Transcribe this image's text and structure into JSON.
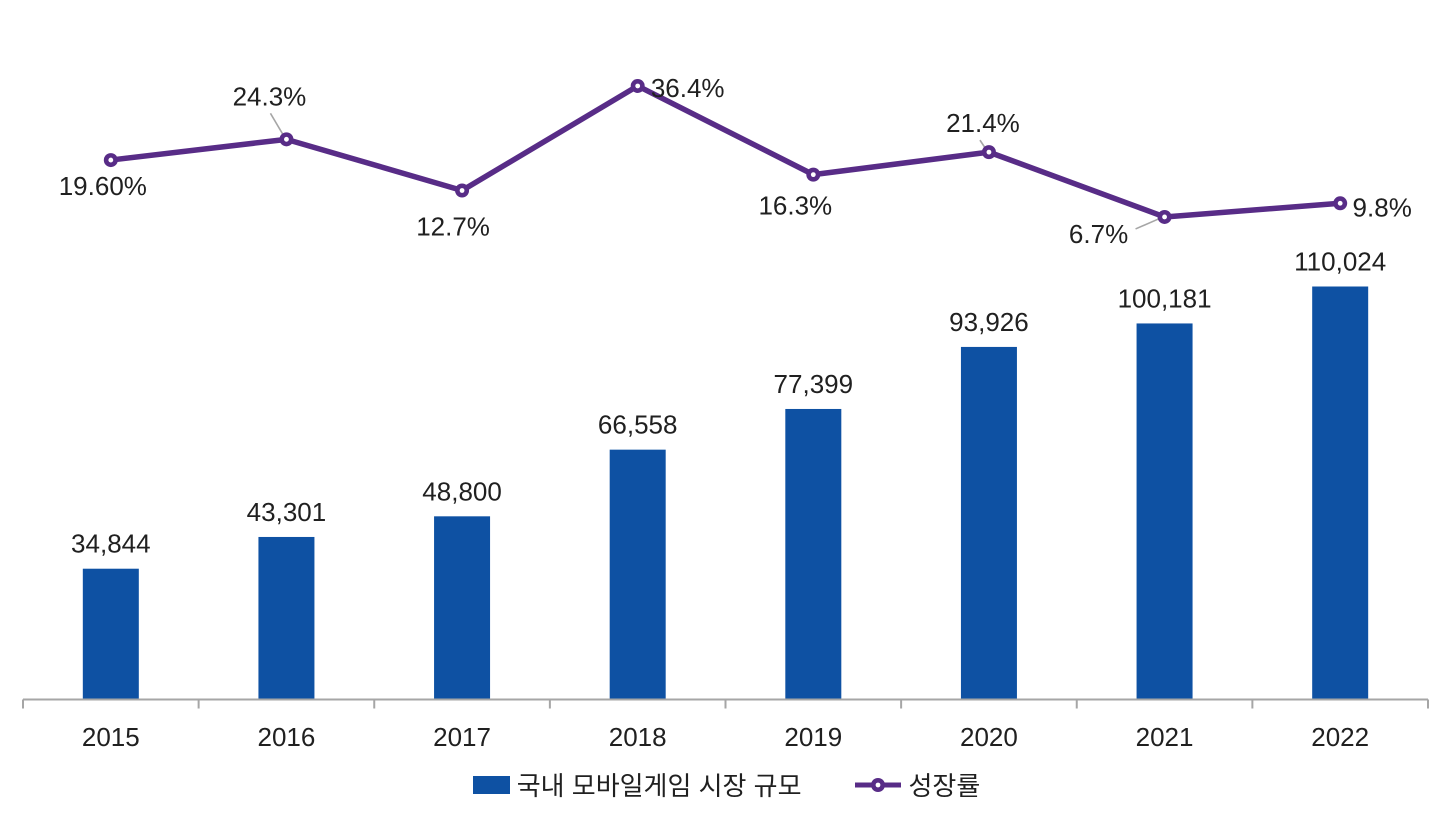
{
  "chart_data": {
    "type": "bar+line",
    "title": "",
    "categories": [
      "2015",
      "2016",
      "2017",
      "2018",
      "2019",
      "2020",
      "2021",
      "2022"
    ],
    "series": [
      {
        "name": "국내 모바일게임 시장 규모",
        "type": "bar",
        "color": "#0e51a3",
        "values": [
          34844,
          43301,
          48800,
          66558,
          77399,
          93926,
          100181,
          110024
        ],
        "labels": [
          "34,844",
          "43,301",
          "48,800",
          "66,558",
          "77,399",
          "93,926",
          "100,181",
          "110,024"
        ]
      },
      {
        "name": "성장률",
        "type": "line",
        "color": "#582c87",
        "marker": "ring-circle",
        "values": [
          19.6,
          24.3,
          12.7,
          36.4,
          16.3,
          21.4,
          6.7,
          9.8
        ],
        "labels": [
          "19.60%",
          "24.3%",
          "12.7%",
          "36.4%",
          "16.3%",
          "21.4%",
          "6.7%",
          "9.8%"
        ],
        "label_placements": [
          "below",
          "above-leader",
          "below",
          "right",
          "below",
          "above-leader",
          "left-leader",
          "right"
        ]
      }
    ],
    "legend": {
      "position": "bottom",
      "items": [
        "국내 모바일게임 시장 규모",
        "성장률"
      ]
    },
    "axes": {
      "x_tick_labels": [
        "2015",
        "2016",
        "2017",
        "2018",
        "2019",
        "2020",
        "2021",
        "2022"
      ],
      "y_axis_visible": false,
      "gridlines": false,
      "axis_color": "#a6a6a6"
    },
    "leader_line_color": "#a6a6a6",
    "text_color": "#202020",
    "background": "#ffffff"
  }
}
